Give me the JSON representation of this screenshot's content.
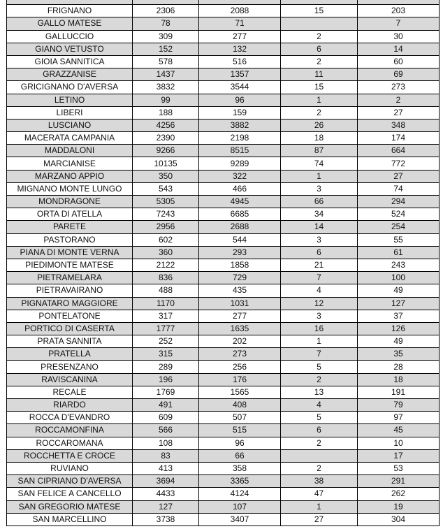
{
  "colors": {
    "row_alt": "#d9d9d9",
    "border": "#000000"
  },
  "rows": [
    [
      "FRIGNANO",
      "2306",
      "2088",
      "15",
      "203"
    ],
    [
      "GALLO MATESE",
      "78",
      "71",
      "",
      "7"
    ],
    [
      "GALLUCCIO",
      "309",
      "277",
      "2",
      "30"
    ],
    [
      "GIANO VETUSTO",
      "152",
      "132",
      "6",
      "14"
    ],
    [
      "GIOIA SANNITICA",
      "578",
      "516",
      "2",
      "60"
    ],
    [
      "GRAZZANISE",
      "1437",
      "1357",
      "11",
      "69"
    ],
    [
      "GRICIGNANO D'AVERSA",
      "3832",
      "3544",
      "15",
      "273"
    ],
    [
      "LETINO",
      "99",
      "96",
      "1",
      "2"
    ],
    [
      "LIBERI",
      "188",
      "159",
      "2",
      "27"
    ],
    [
      "LUSCIANO",
      "4256",
      "3882",
      "26",
      "348"
    ],
    [
      "MACERATA CAMPANIA",
      "2390",
      "2198",
      "18",
      "174"
    ],
    [
      "MADDALONI",
      "9266",
      "8515",
      "87",
      "664"
    ],
    [
      "MARCIANISE",
      "10135",
      "9289",
      "74",
      "772"
    ],
    [
      "MARZANO APPIO",
      "350",
      "322",
      "1",
      "27"
    ],
    [
      "MIGNANO MONTE LUNGO",
      "543",
      "466",
      "3",
      "74"
    ],
    [
      "MONDRAGONE",
      "5305",
      "4945",
      "66",
      "294"
    ],
    [
      "ORTA DI ATELLA",
      "7243",
      "6685",
      "34",
      "524"
    ],
    [
      "PARETE",
      "2956",
      "2688",
      "14",
      "254"
    ],
    [
      "PASTORANO",
      "602",
      "544",
      "3",
      "55"
    ],
    [
      "PIANA DI MONTE VERNA",
      "360",
      "293",
      "6",
      "61"
    ],
    [
      "PIEDIMONTE MATESE",
      "2122",
      "1858",
      "21",
      "243"
    ],
    [
      "PIETRAMELARA",
      "836",
      "729",
      "7",
      "100"
    ],
    [
      "PIETRAVAIRANO",
      "488",
      "435",
      "4",
      "49"
    ],
    [
      "PIGNATARO MAGGIORE",
      "1170",
      "1031",
      "12",
      "127"
    ],
    [
      "PONTELATONE",
      "317",
      "277",
      "3",
      "37"
    ],
    [
      "PORTICO DI CASERTA",
      "1777",
      "1635",
      "16",
      "126"
    ],
    [
      "PRATA SANNITA",
      "252",
      "202",
      "1",
      "49"
    ],
    [
      "PRATELLA",
      "315",
      "273",
      "7",
      "35"
    ],
    [
      "PRESENZANO",
      "289",
      "256",
      "5",
      "28"
    ],
    [
      "RAVISCANINA",
      "196",
      "176",
      "2",
      "18"
    ],
    [
      "RECALE",
      "1769",
      "1565",
      "13",
      "191"
    ],
    [
      "RIARDO",
      "491",
      "408",
      "4",
      "79"
    ],
    [
      "ROCCA D'EVANDRO",
      "609",
      "507",
      "5",
      "97"
    ],
    [
      "ROCCAMONFINA",
      "566",
      "515",
      "6",
      "45"
    ],
    [
      "ROCCAROMANA",
      "108",
      "96",
      "2",
      "10"
    ],
    [
      "ROCCHETTA E CROCE",
      "83",
      "66",
      "",
      "17"
    ],
    [
      "RUVIANO",
      "413",
      "358",
      "2",
      "53"
    ],
    [
      "SAN CIPRIANO D'AVERSA",
      "3694",
      "3365",
      "38",
      "291"
    ],
    [
      "SAN FELICE A CANCELLO",
      "4433",
      "4124",
      "47",
      "262"
    ],
    [
      "SAN GREGORIO MATESE",
      "127",
      "107",
      "1",
      "19"
    ],
    [
      "SAN MARCELLINO",
      "3738",
      "3407",
      "27",
      "304"
    ]
  ]
}
